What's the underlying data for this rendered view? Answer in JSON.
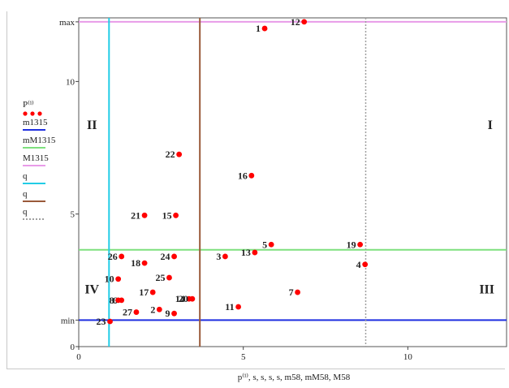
{
  "chart_data": {
    "type": "scatter",
    "xlim": [
      0,
      13
    ],
    "ylim": [
      0,
      12.4
    ],
    "xticks": [
      0,
      5,
      10
    ],
    "y_tick_labels": [
      {
        "value": 0,
        "label": "0"
      },
      {
        "value": 1,
        "label": "min"
      },
      {
        "value": 5,
        "label": "5"
      },
      {
        "value": 10,
        "label": "10"
      },
      {
        "value": 12.25,
        "label": "max"
      }
    ],
    "xlabel": "p⁽ⁱ⁾, s, s, s, s, m58, mM58, M58",
    "legend": [
      {
        "label": "P⁽ⁱ⁾",
        "color": "#ff0000",
        "style": "dots"
      },
      {
        "label": "m1315",
        "color": "#1f2fe0",
        "style": "line"
      },
      {
        "label": "mM1315",
        "color": "#7ee07e",
        "style": "line"
      },
      {
        "label": "M1315",
        "color": "#e89be8",
        "style": "line"
      },
      {
        "label": "q",
        "color": "#22cce6",
        "style": "line"
      },
      {
        "label": "q",
        "color": "#9a5a3a",
        "style": "line"
      },
      {
        "label": "q",
        "color": "#a0a0a0",
        "style": "dash"
      }
    ],
    "horizontal_lines": [
      {
        "name": "m1315",
        "y": 1.0,
        "color": "#1f2fe0"
      },
      {
        "name": "mM1315",
        "y": 3.65,
        "color": "#7ee07e"
      },
      {
        "name": "M1315",
        "y": 12.25,
        "color": "#e89be8"
      }
    ],
    "vertical_lines": [
      {
        "x": 0.92,
        "color": "#22cce6",
        "dashed": false
      },
      {
        "x": 3.68,
        "color": "#9a5a3a",
        "dashed": false
      },
      {
        "x": 8.72,
        "color": "#a0a0a0",
        "dashed": true
      }
    ],
    "quadrant_labels": [
      {
        "label": "I",
        "x": 12.5,
        "y": 8.2
      },
      {
        "label": "II",
        "x": 0.4,
        "y": 8.2
      },
      {
        "label": "III",
        "x": 12.4,
        "y": 2.0
      },
      {
        "label": "IV",
        "x": 0.4,
        "y": 2.0
      }
    ],
    "points": [
      {
        "label": "1",
        "x": 5.65,
        "y": 12.0
      },
      {
        "label": "2",
        "x": 2.45,
        "y": 1.4
      },
      {
        "label": "3",
        "x": 4.45,
        "y": 3.4
      },
      {
        "label": "4",
        "x": 8.7,
        "y": 3.1
      },
      {
        "label": "5",
        "x": 5.85,
        "y": 3.85
      },
      {
        "label": "6",
        "x": 1.3,
        "y": 1.75
      },
      {
        "label": "7",
        "x": 6.65,
        "y": 2.05
      },
      {
        "label": "8",
        "x": 1.2,
        "y": 1.75
      },
      {
        "label": "9",
        "x": 2.9,
        "y": 1.25
      },
      {
        "label": "10",
        "x": 1.2,
        "y": 2.55
      },
      {
        "label": "11",
        "x": 4.85,
        "y": 1.5
      },
      {
        "label": "12",
        "x": 6.85,
        "y": 12.25
      },
      {
        "label": "13",
        "x": 5.35,
        "y": 3.55
      },
      {
        "label": "14",
        "x": 3.35,
        "y": 1.8
      },
      {
        "label": "15",
        "x": 2.95,
        "y": 4.95
      },
      {
        "label": "16",
        "x": 5.25,
        "y": 6.45
      },
      {
        "label": "17",
        "x": 2.25,
        "y": 2.05
      },
      {
        "label": "18",
        "x": 2.0,
        "y": 3.15
      },
      {
        "label": "19",
        "x": 8.55,
        "y": 3.85
      },
      {
        "label": "20",
        "x": 3.45,
        "y": 1.8
      },
      {
        "label": "21",
        "x": 2.0,
        "y": 4.95
      },
      {
        "label": "22",
        "x": 3.05,
        "y": 7.25
      },
      {
        "label": "23",
        "x": 0.95,
        "y": 0.95
      },
      {
        "label": "24",
        "x": 2.9,
        "y": 3.4
      },
      {
        "label": "25",
        "x": 2.75,
        "y": 2.6
      },
      {
        "label": "26",
        "x": 1.3,
        "y": 3.4
      },
      {
        "label": "27",
        "x": 1.75,
        "y": 1.3
      }
    ]
  }
}
